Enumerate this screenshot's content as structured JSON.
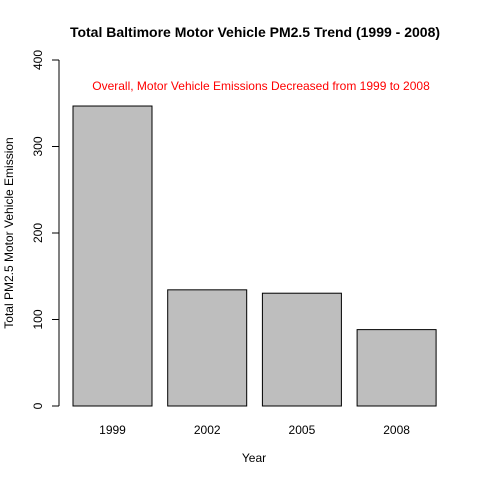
{
  "chart_data": {
    "type": "bar",
    "title": "Total Baltimore  Motor Vehicle PM2.5 Trend (1999 - 2008)",
    "xlabel": "Year",
    "ylabel": "Total PM2.5 Motor Vehicle Emission",
    "categories": [
      "1999",
      "2002",
      "2005",
      "2008"
    ],
    "values": [
      346.8,
      134.3,
      130.4,
      88.3
    ],
    "ylim": [
      0,
      400
    ],
    "yticks": [
      "0",
      "100",
      "200",
      "300",
      "400"
    ],
    "annotation": "Overall, Motor Vehicle Emissions Decreased from 1999 to 2008",
    "annotation_color": "#ff0000",
    "bar_color": "#bebebe",
    "bar_border_color": "#000000",
    "grid": false
  }
}
